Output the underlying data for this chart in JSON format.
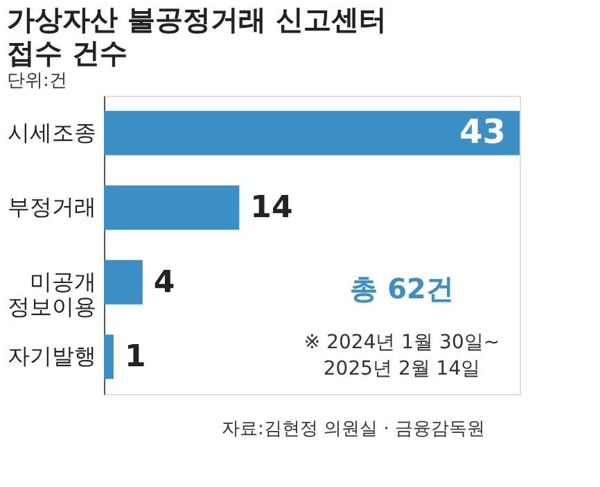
{
  "chart_data": {
    "type": "bar",
    "orientation": "horizontal",
    "title": [
      "가상자산 불공정거래 신고센터",
      "접수 건수"
    ],
    "subtitle": "단위:건",
    "categories": [
      "시세조종",
      "부정거래",
      "미공개\n정보이용",
      "자기발행"
    ],
    "values": [
      43,
      14,
      4,
      1
    ],
    "color": "#3c8fc4",
    "data_labels": true,
    "annotations": [
      "총 62건",
      "※ 2024년 1월 30일~\n2025년 2월 14일",
      "자료:김현정 의원실 · 금융감독원"
    ]
  }
}
